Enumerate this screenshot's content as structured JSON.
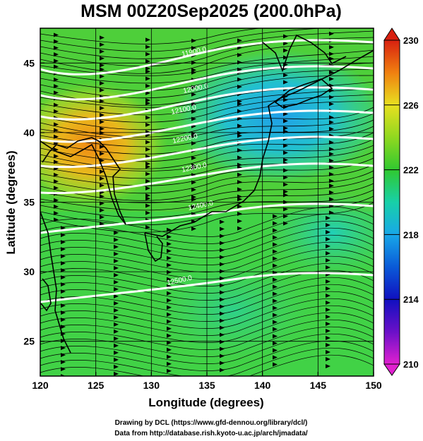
{
  "title": "MSM 00Z20Sep2025 (200.0hPa)",
  "xlabel": "Longitude (degrees)",
  "ylabel": "Latitude  (degrees)",
  "credit_line1": "Drawing by DCL (https://www.gfd-dennou.org/library/dcl/)",
  "credit_line2": "Data from http://database.rish.kyoto-u.ac.jp/arch/jmadata/",
  "chart_data": {
    "type": "heatmap",
    "title": "MSM 00Z20Sep2025 (200.0hPa)",
    "xlabel": "Longitude (degrees)",
    "ylabel": "Latitude  (degrees)",
    "xlim": [
      120,
      150
    ],
    "ylim": [
      22.5,
      47.5
    ],
    "xticks": [
      "120",
      "125",
      "130",
      "135",
      "140",
      "145",
      "150"
    ],
    "yticks": [
      "25",
      "30",
      "35",
      "40",
      "45"
    ],
    "colorbar": {
      "range": [
        210,
        230
      ],
      "ticks": [
        "230",
        "226",
        "222",
        "218",
        "214",
        "210"
      ]
    },
    "contour_labels": [
      "11900.0",
      "12000.0",
      "12100.0",
      "12200.0",
      "12300.0",
      "12400.0",
      "12500.0"
    ],
    "grid": true,
    "fields": [
      "temperature (shaded)",
      "geopotential height (white contours)",
      "wind (streamlines)"
    ]
  }
}
